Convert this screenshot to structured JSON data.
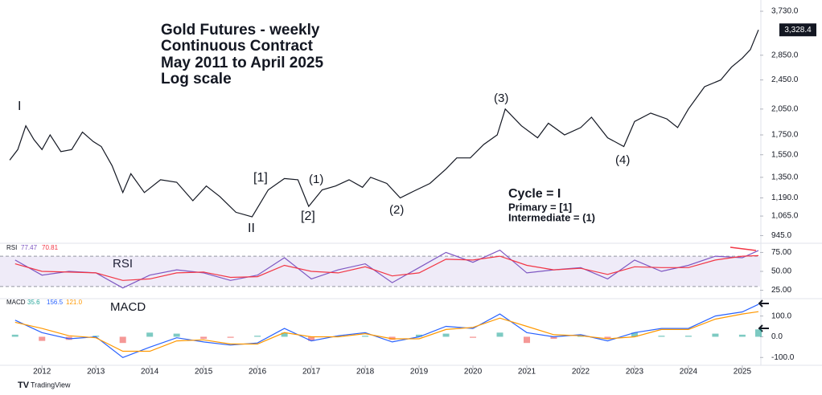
{
  "chart_data": [
    {
      "type": "line",
      "title": [
        "Gold Futures - weekly",
        "Continuous Contract",
        "May 2011 to April 2025",
        "Log scale"
      ],
      "log_scale": true,
      "x": [
        2011.4,
        2011.55,
        2011.7,
        2011.85,
        2012.0,
        2012.15,
        2012.35,
        2012.55,
        2012.75,
        2012.95,
        2013.1,
        2013.3,
        2013.5,
        2013.65,
        2013.9,
        2014.2,
        2014.5,
        2014.8,
        2015.05,
        2015.3,
        2015.6,
        2015.9,
        2016.2,
        2016.5,
        2016.75,
        2016.95,
        2017.2,
        2017.45,
        2017.7,
        2017.95,
        2018.1,
        2018.4,
        2018.65,
        2018.9,
        2019.2,
        2019.5,
        2019.7,
        2019.95,
        2020.2,
        2020.45,
        2020.6,
        2020.9,
        2021.2,
        2021.4,
        2021.7,
        2022.0,
        2022.2,
        2022.5,
        2022.8,
        2023.0,
        2023.3,
        2023.6,
        2023.8,
        2024.0,
        2024.3,
        2024.6,
        2024.8,
        2025.0,
        2025.15,
        2025.3
      ],
      "series": [
        {
          "name": "Gold",
          "color": "#131722",
          "values": [
            1500,
            1600,
            1850,
            1700,
            1600,
            1750,
            1580,
            1600,
            1780,
            1680,
            1630,
            1450,
            1230,
            1380,
            1230,
            1330,
            1310,
            1170,
            1280,
            1200,
            1090,
            1060,
            1250,
            1340,
            1330,
            1130,
            1250,
            1280,
            1330,
            1270,
            1350,
            1300,
            1190,
            1240,
            1300,
            1420,
            1520,
            1520,
            1650,
            1750,
            2050,
            1850,
            1720,
            1880,
            1750,
            1830,
            1950,
            1720,
            1630,
            1900,
            2000,
            1930,
            1830,
            2050,
            2350,
            2450,
            2650,
            2800,
            2950,
            3328.4
          ]
        }
      ],
      "last_price_label": "3,328.4",
      "xlim": [
        2011.22,
        2025.33
      ],
      "ylim": [
        915,
        3880
      ],
      "yticks": [
        {
          "value": 945,
          "label": "945.0"
        },
        {
          "value": 1065,
          "label": "1,065.0"
        },
        {
          "value": 1190,
          "label": "1,190.0"
        },
        {
          "value": 1350,
          "label": "1,350.0"
        },
        {
          "value": 1550,
          "label": "1,550.0"
        },
        {
          "value": 1750,
          "label": "1,750.0"
        },
        {
          "value": 2050,
          "label": "2,050.0"
        },
        {
          "value": 2450,
          "label": "2,450.0"
        },
        {
          "value": 2850,
          "label": "2,850.0"
        },
        {
          "value": 3730,
          "label": "3,730.0"
        }
      ],
      "annotations": [
        "I",
        "II",
        "[1]",
        "[2]",
        "(1)",
        "(2)",
        "(3)",
        "(4)",
        "Cycle = I",
        "Primary = [1]",
        "Intermediate = (1)"
      ]
    },
    {
      "type": "line",
      "title": "RSI",
      "readout_name": "RSI",
      "x": [
        2011.5,
        2012.0,
        2012.5,
        2013.0,
        2013.5,
        2014.0,
        2014.5,
        2015.0,
        2015.5,
        2016.0,
        2016.5,
        2017.0,
        2017.5,
        2018.0,
        2018.5,
        2019.0,
        2019.5,
        2020.0,
        2020.5,
        2021.0,
        2021.5,
        2022.0,
        2022.5,
        2023.0,
        2023.5,
        2024.0,
        2024.5,
        2025.0,
        2025.3
      ],
      "series": [
        {
          "name": "RSI",
          "color": "#7e57c2",
          "values": [
            65,
            45,
            50,
            48,
            28,
            45,
            52,
            48,
            38,
            45,
            68,
            40,
            52,
            60,
            35,
            55,
            75,
            62,
            78,
            48,
            52,
            55,
            40,
            65,
            50,
            58,
            70,
            68,
            77.47
          ]
        },
        {
          "name": "RSI MA",
          "color": "#f23645",
          "values": [
            60,
            50,
            49,
            48,
            38,
            40,
            48,
            49,
            42,
            43,
            58,
            50,
            48,
            56,
            44,
            48,
            66,
            65,
            70,
            58,
            52,
            54,
            46,
            56,
            55,
            55,
            65,
            70,
            70.81
          ]
        }
      ],
      "band": [
        30,
        70
      ],
      "band_color": "#7e57c2",
      "xlim": [
        2011.22,
        2025.33
      ],
      "ylim": [
        15,
        85
      ],
      "yticks": [
        {
          "value": 25,
          "label": "25.00"
        },
        {
          "value": 50,
          "label": "50.00"
        },
        {
          "value": 75,
          "label": "75.00"
        }
      ]
    },
    {
      "type": "line",
      "title": "MACD",
      "readout_name": "MACD",
      "readouts": [
        "35.6",
        "156.5",
        "121.0"
      ],
      "x": [
        2011.5,
        2012.0,
        2012.5,
        2013.0,
        2013.5,
        2014.0,
        2014.5,
        2015.0,
        2015.5,
        2016.0,
        2016.5,
        2017.0,
        2017.5,
        2018.0,
        2018.5,
        2019.0,
        2019.5,
        2020.0,
        2020.5,
        2021.0,
        2021.5,
        2022.0,
        2022.5,
        2023.0,
        2023.5,
        2024.0,
        2024.5,
        2025.0,
        2025.3
      ],
      "series": [
        {
          "name": "Histogram",
          "style": "histogram",
          "color": "#26a69a",
          "negative_color": "#ef5350",
          "values": [
            10,
            -20,
            -15,
            5,
            -30,
            20,
            15,
            -10,
            -5,
            5,
            20,
            -20,
            5,
            5,
            -15,
            10,
            15,
            -5,
            20,
            -30,
            -10,
            5,
            -10,
            20,
            5,
            5,
            15,
            10,
            35.6
          ]
        },
        {
          "name": "MACD",
          "color": "#2962ff",
          "values": [
            80,
            20,
            -10,
            0,
            -100,
            -50,
            -5,
            -25,
            -40,
            -30,
            40,
            -20,
            5,
            20,
            -25,
            0,
            50,
            40,
            110,
            20,
            0,
            10,
            -20,
            20,
            40,
            40,
            100,
            120,
            156.5
          ]
        },
        {
          "name": "Signal",
          "color": "#ff9800",
          "values": [
            70,
            40,
            5,
            -5,
            -70,
            -70,
            -20,
            -15,
            -35,
            -35,
            20,
            0,
            0,
            15,
            -10,
            -10,
            35,
            45,
            90,
            50,
            10,
            5,
            -10,
            0,
            35,
            35,
            85,
            110,
            121
          ]
        }
      ],
      "xlim": [
        2011.22,
        2025.33
      ],
      "ylim": [
        -130,
        180
      ],
      "yticks": [
        {
          "value": -100,
          "label": "-100.0"
        },
        {
          "value": 0,
          "label": "0.0"
        },
        {
          "value": 100,
          "label": "100.0"
        }
      ],
      "xticks": [
        2012,
        2013,
        2014,
        2015,
        2016,
        2017,
        2018,
        2019,
        2020,
        2021,
        2022,
        2023,
        2024,
        2025
      ]
    }
  ],
  "footer": "TradingView"
}
